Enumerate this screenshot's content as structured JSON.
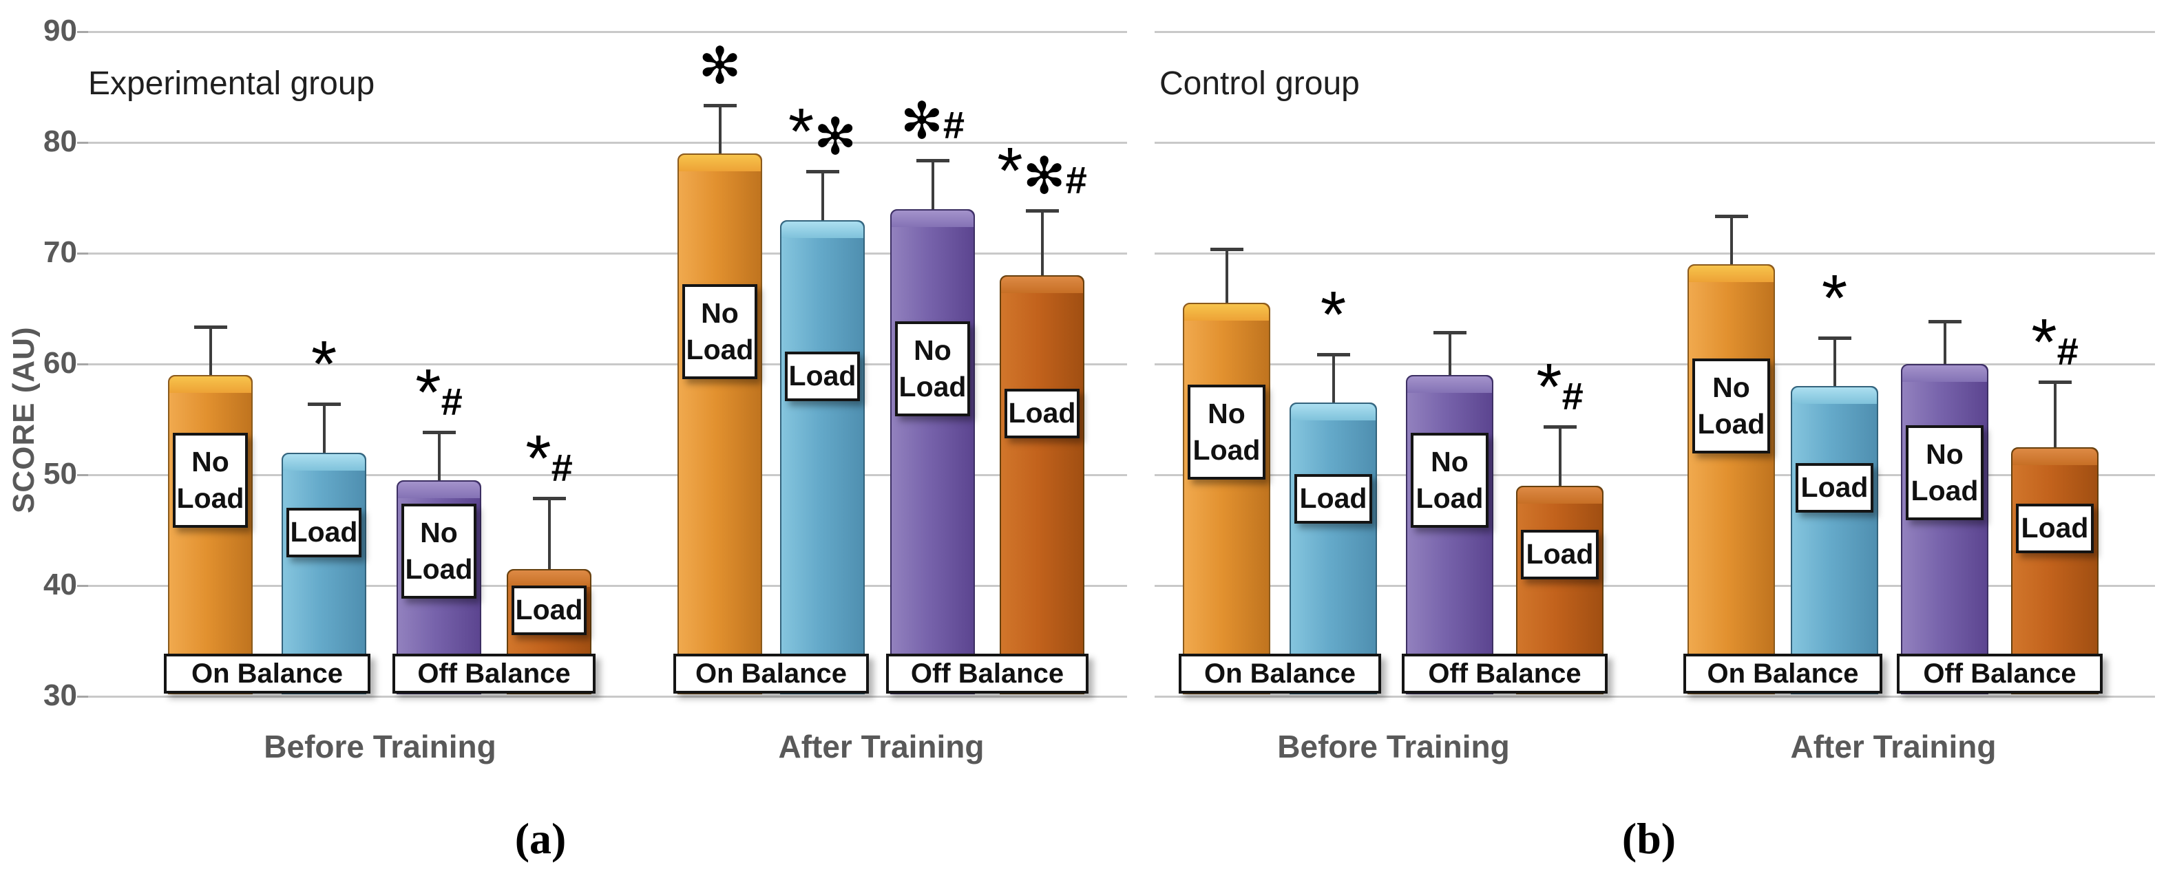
{
  "chart_data": {
    "type": "bar",
    "y_axis": {
      "label": "SCORE (AU)",
      "ticks": [
        90,
        80,
        70,
        60,
        50,
        40,
        30
      ],
      "min": 30,
      "max": 90,
      "grid": true
    },
    "series_colors": {
      "orange": {
        "light": "#F0A94E",
        "mid": "#E2912F",
        "dark": "#C0741F",
        "cap_top": "#F7C44C",
        "cap_bottom": "#EDA236",
        "border": "#8a5a1c"
      },
      "blue": {
        "light": "#85C5DE",
        "mid": "#65AACA",
        "dark": "#4F8FB0",
        "cap_top": "#ACDFF0",
        "cap_bottom": "#7FC2DB",
        "border": "#33637c"
      },
      "purple": {
        "light": "#9281BE",
        "mid": "#7763AB",
        "dark": "#5C4590",
        "cap_top": "#A493CB",
        "cap_bottom": "#8472B5",
        "border": "#3c2f63"
      },
      "rust": {
        "light": "#D1762B",
        "mid": "#C2621C",
        "dark": "#A14F12",
        "cap_top": "#DD8A45",
        "cap_bottom": "#C76F25",
        "border": "#66400e"
      }
    },
    "panels": [
      {
        "id": "a",
        "title": "Experimental group",
        "letter": "(a)",
        "groups": [
          {
            "label": "Before Training",
            "pairs": [
              {
                "balance": "On Balance",
                "bars": [
                  {
                    "label": "No Load",
                    "series": "orange",
                    "value": 59,
                    "error_top": 63.5,
                    "annotation": ""
                  },
                  {
                    "label": "Load",
                    "series": "blue",
                    "value": 52,
                    "error_top": 56.5,
                    "annotation": "*"
                  }
                ]
              },
              {
                "balance": "Off Balance",
                "bars": [
                  {
                    "label": "No Load",
                    "series": "purple",
                    "value": 49.5,
                    "error_top": 54,
                    "annotation": "*#"
                  },
                  {
                    "label": "Load",
                    "series": "rust",
                    "value": 41.5,
                    "error_top": 48,
                    "annotation": "*#"
                  }
                ]
              }
            ]
          },
          {
            "label": "After Training",
            "pairs": [
              {
                "balance": "On Balance",
                "bars": [
                  {
                    "label": "No Load",
                    "series": "orange",
                    "value": 79,
                    "error_top": 83.5,
                    "annotation": "✻"
                  },
                  {
                    "label": "Load",
                    "series": "blue",
                    "value": 73,
                    "error_top": 77.5,
                    "annotation": "*✻"
                  }
                ]
              },
              {
                "balance": "Off Balance",
                "bars": [
                  {
                    "label": "No Load",
                    "series": "purple",
                    "value": 74,
                    "error_top": 78.5,
                    "annotation": "✻#"
                  },
                  {
                    "label": "Load",
                    "series": "rust",
                    "value": 68,
                    "error_top": 74,
                    "annotation": "*✻#"
                  }
                ]
              }
            ]
          }
        ]
      },
      {
        "id": "b",
        "title": "Control group",
        "letter": "(b)",
        "groups": [
          {
            "label": "Before Training",
            "pairs": [
              {
                "balance": "On Balance",
                "bars": [
                  {
                    "label": "No Load",
                    "series": "orange",
                    "value": 65.5,
                    "error_top": 70.5,
                    "annotation": ""
                  },
                  {
                    "label": "Load",
                    "series": "blue",
                    "value": 56.5,
                    "error_top": 61,
                    "annotation": "*"
                  }
                ]
              },
              {
                "balance": "Off Balance",
                "bars": [
                  {
                    "label": "No Load",
                    "series": "purple",
                    "value": 59,
                    "error_top": 63,
                    "annotation": ""
                  },
                  {
                    "label": "Load",
                    "series": "rust",
                    "value": 49,
                    "error_top": 54.5,
                    "annotation": "*#"
                  }
                ]
              }
            ]
          },
          {
            "label": "After Training",
            "pairs": [
              {
                "balance": "On Balance",
                "bars": [
                  {
                    "label": "No Load",
                    "series": "orange",
                    "value": 69,
                    "error_top": 73.5,
                    "annotation": ""
                  },
                  {
                    "label": "Load",
                    "series": "blue",
                    "value": 58,
                    "error_top": 62.5,
                    "annotation": "*"
                  }
                ]
              },
              {
                "balance": "Off Balance",
                "bars": [
                  {
                    "label": "No Load",
                    "series": "purple",
                    "value": 60,
                    "error_top": 64,
                    "annotation": ""
                  },
                  {
                    "label": "Load",
                    "series": "rust",
                    "value": 52.5,
                    "error_top": 58.5,
                    "annotation": "*#"
                  }
                ]
              }
            ]
          }
        ]
      }
    ]
  }
}
